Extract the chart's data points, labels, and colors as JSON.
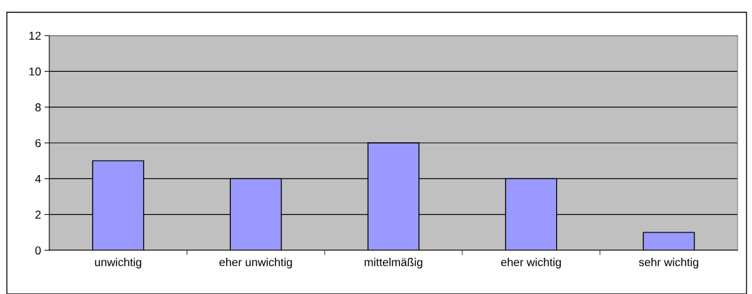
{
  "chart_data": {
    "type": "bar",
    "categories": [
      "unwichtig",
      "eher unwichtig",
      "mittelmäßig",
      "eher wichtig",
      "sehr wichtig"
    ],
    "values": [
      5,
      4,
      6,
      4,
      1
    ],
    "color": "#9999ff",
    "ylim": [
      0,
      12
    ],
    "yticks": [
      0,
      2,
      4,
      6,
      8,
      10,
      12
    ],
    "grid": "y",
    "legend": false
  }
}
